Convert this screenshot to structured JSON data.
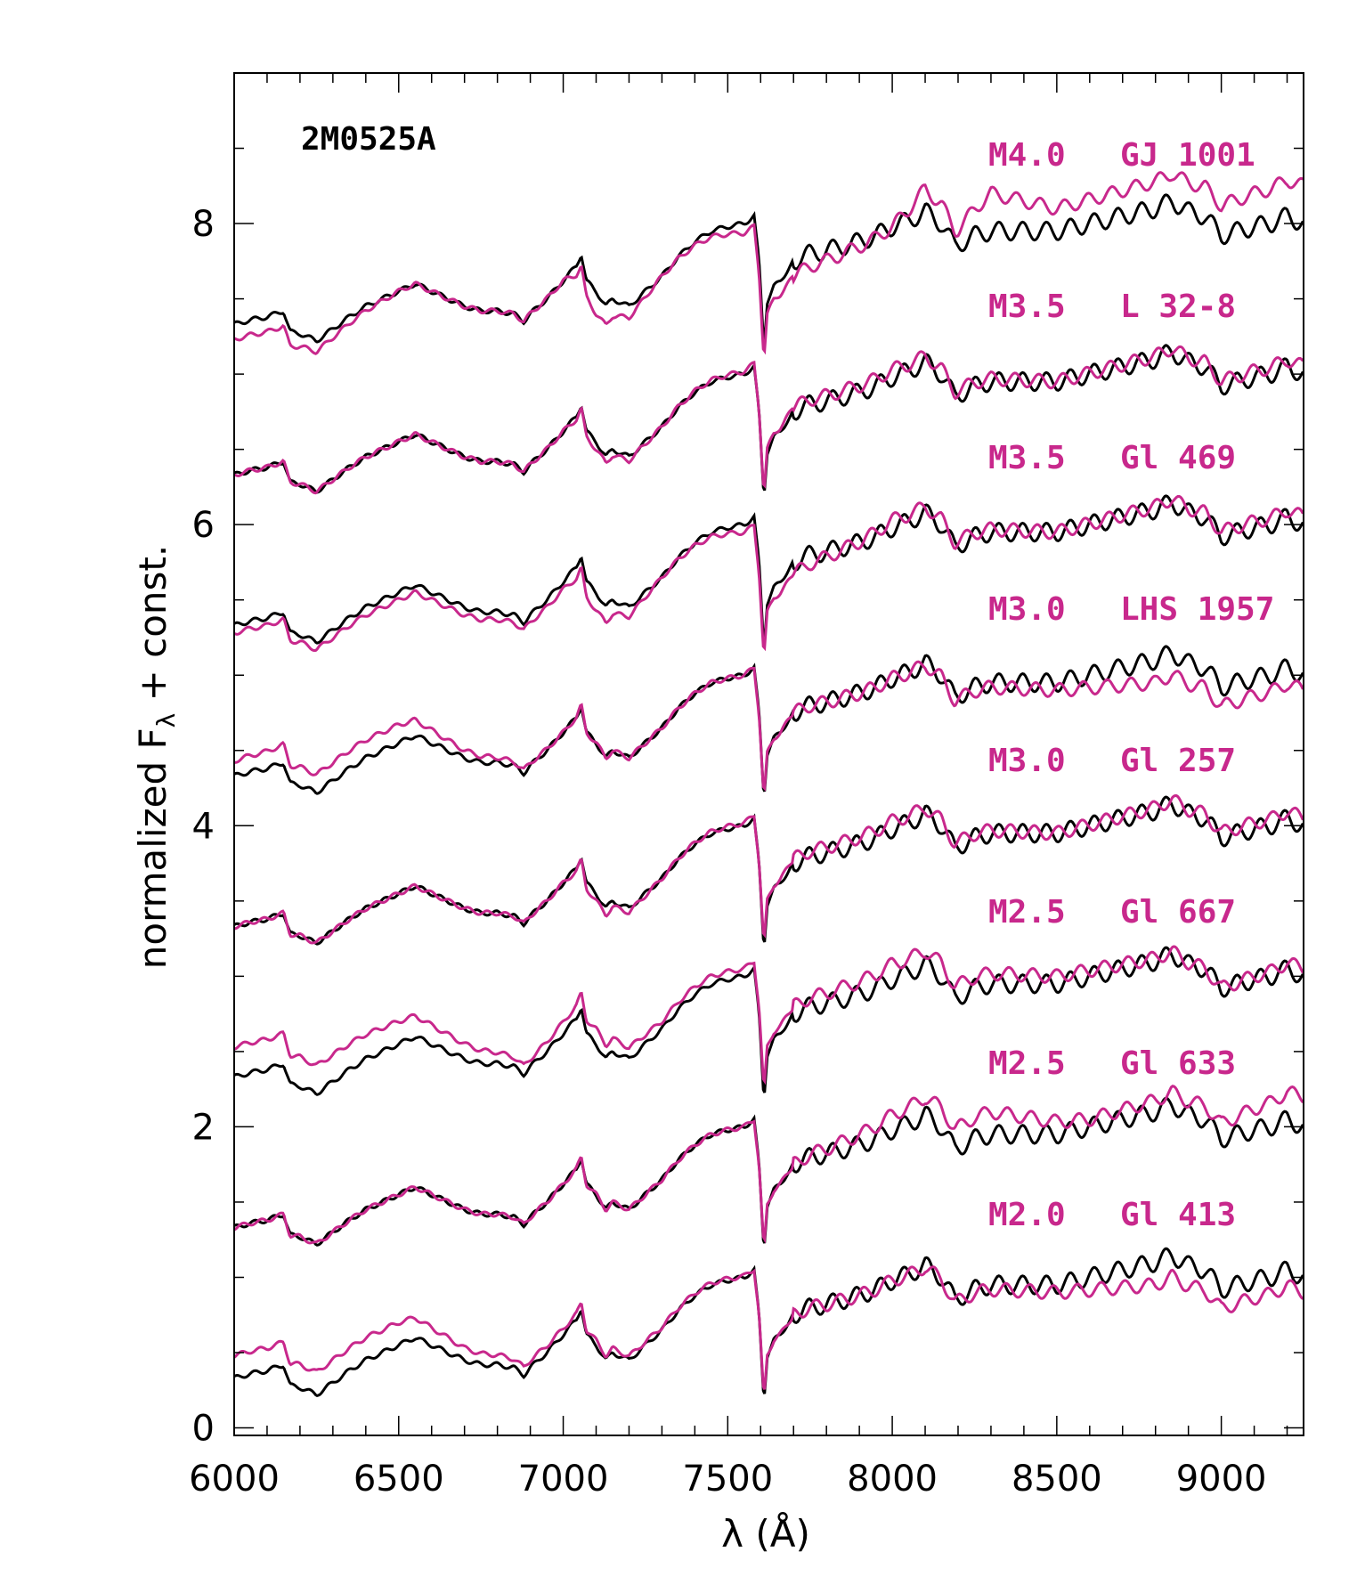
{
  "chart_data": {
    "type": "line",
    "title": "2M0525A",
    "xlabel": "λ (Å)",
    "ylabel": "normalized F",
    "ylabel_sub": "λ",
    "ylabel_suffix": " + const.",
    "xlim": [
      6000,
      9250
    ],
    "ylim": [
      -0.05,
      9.0
    ],
    "xticks": [
      6000,
      6500,
      7000,
      7500,
      8000,
      8500,
      9000
    ],
    "yticks": [
      0,
      2,
      4,
      6,
      8
    ],
    "grid": false,
    "colors": {
      "target": "#000000",
      "template": "#c8288c"
    },
    "offsets": [
      7,
      6,
      5,
      4,
      3,
      2,
      1,
      0
    ],
    "annotations": [
      {
        "spt": "M4.0",
        "name": "GJ 1001"
      },
      {
        "spt": "M3.5",
        "name": "L 32-8"
      },
      {
        "spt": "M3.5",
        "name": "Gl 469"
      },
      {
        "spt": "M3.0",
        "name": "LHS 1957"
      },
      {
        "spt": "M3.0",
        "name": "Gl 257"
      },
      {
        "spt": "M2.5",
        "name": "Gl 667"
      },
      {
        "spt": "M2.5",
        "name": "Gl 633"
      },
      {
        "spt": "M2.0",
        "name": "Gl 413"
      }
    ],
    "base_spectrum": {
      "x": [
        6000,
        6050,
        6100,
        6150,
        6170,
        6200,
        6250,
        6300,
        6350,
        6400,
        6450,
        6500,
        6550,
        6600,
        6650,
        6700,
        6750,
        6800,
        6850,
        6880,
        6900,
        6950,
        7000,
        7040,
        7055,
        7070,
        7100,
        7130,
        7150,
        7200,
        7250,
        7300,
        7350,
        7400,
        7450,
        7500,
        7550,
        7580,
        7595,
        7610,
        7620,
        7640,
        7660,
        7700,
        7750,
        7800,
        7850,
        7900,
        7950,
        8000,
        8050,
        8100,
        8150,
        8190,
        8250,
        8300,
        8400,
        8500,
        8600,
        8700,
        8800,
        8850,
        8900,
        8950,
        9000,
        9050,
        9100,
        9150,
        9200,
        9250
      ],
      "y": [
        0.33,
        0.36,
        0.38,
        0.42,
        0.28,
        0.27,
        0.22,
        0.3,
        0.38,
        0.45,
        0.5,
        0.55,
        0.6,
        0.55,
        0.5,
        0.45,
        0.42,
        0.42,
        0.4,
        0.35,
        0.4,
        0.5,
        0.62,
        0.72,
        0.8,
        0.62,
        0.55,
        0.45,
        0.5,
        0.45,
        0.55,
        0.65,
        0.78,
        0.88,
        0.95,
        0.98,
        1.0,
        1.05,
        0.75,
        0.18,
        0.48,
        0.58,
        0.62,
        0.75,
        0.8,
        0.82,
        0.85,
        0.88,
        0.92,
        0.98,
        1.02,
        1.08,
        1.0,
        0.85,
        0.92,
        0.95,
        0.95,
        0.95,
        1.0,
        1.05,
        1.1,
        1.15,
        1.08,
        1.05,
        0.92,
        0.95,
        0.98,
        1.0,
        1.05,
        1.0
      ]
    },
    "series": [
      {
        "offset": 7,
        "target_delta": [
          [
            6000,
            0.0
          ]
        ],
        "template_delta": [
          [
            6000,
            -0.1
          ],
          [
            6150,
            -0.1
          ],
          [
            6500,
            0.0
          ],
          [
            7000,
            0.0
          ],
          [
            7100,
            -0.15
          ],
          [
            7300,
            0.0
          ],
          [
            7700,
            -0.1
          ],
          [
            8000,
            0.0
          ],
          [
            8100,
            0.15
          ],
          [
            8200,
            0.1
          ],
          [
            8300,
            0.25
          ],
          [
            8500,
            0.15
          ],
          [
            9000,
            0.2
          ],
          [
            9250,
            0.25
          ]
        ]
      },
      {
        "offset": 6,
        "target_delta": [
          [
            6000,
            0.0
          ]
        ],
        "template_delta": [
          [
            6000,
            0.0
          ],
          [
            7000,
            0.0
          ],
          [
            7100,
            -0.05
          ],
          [
            7300,
            0.0
          ],
          [
            8000,
            0.05
          ],
          [
            8500,
            0.0
          ],
          [
            9250,
            0.05
          ]
        ]
      },
      {
        "offset": 5,
        "target_delta": [
          [
            6000,
            0.0
          ]
        ],
        "template_delta": [
          [
            6000,
            -0.05
          ],
          [
            6500,
            -0.05
          ],
          [
            7000,
            -0.05
          ],
          [
            7100,
            -0.12
          ],
          [
            7300,
            0.0
          ],
          [
            7700,
            -0.08
          ],
          [
            8000,
            0.05
          ],
          [
            8500,
            0.0
          ],
          [
            9250,
            0.05
          ]
        ]
      },
      {
        "offset": 4,
        "target_delta": [
          [
            6000,
            0.0
          ]
        ],
        "template_delta": [
          [
            6000,
            0.1
          ],
          [
            6150,
            0.12
          ],
          [
            6500,
            0.12
          ],
          [
            6700,
            0.05
          ],
          [
            7000,
            0.0
          ],
          [
            8000,
            0.0
          ],
          [
            8500,
            -0.05
          ],
          [
            8800,
            -0.15
          ],
          [
            9250,
            -0.1
          ]
        ]
      },
      {
        "offset": 3,
        "target_delta": [
          [
            6000,
            0.0
          ]
        ],
        "template_delta": [
          [
            6000,
            0.0
          ],
          [
            7000,
            0.0
          ],
          [
            7100,
            -0.05
          ],
          [
            7300,
            0.0
          ],
          [
            8000,
            0.05
          ],
          [
            8500,
            0.0
          ],
          [
            9250,
            0.05
          ]
        ]
      },
      {
        "offset": 2,
        "target_delta": [
          [
            6000,
            0.0
          ]
        ],
        "template_delta": [
          [
            6000,
            0.2
          ],
          [
            6150,
            0.2
          ],
          [
            6500,
            0.15
          ],
          [
            6700,
            0.1
          ],
          [
            6900,
            0.05
          ],
          [
            7100,
            0.1
          ],
          [
            7300,
            0.05
          ],
          [
            7700,
            0.05
          ],
          [
            8000,
            0.1
          ],
          [
            8500,
            0.05
          ],
          [
            9000,
            0.0
          ],
          [
            9250,
            0.05
          ]
        ]
      },
      {
        "offset": 1,
        "target_delta": [
          [
            6000,
            0.0
          ]
        ],
        "template_delta": [
          [
            6000,
            0.0
          ],
          [
            7000,
            0.0
          ],
          [
            7700,
            0.0
          ],
          [
            8000,
            0.1
          ],
          [
            8300,
            0.15
          ],
          [
            8600,
            0.05
          ],
          [
            9000,
            0.1
          ],
          [
            9250,
            0.2
          ]
        ]
      },
      {
        "offset": 0,
        "target_delta": [
          [
            6000,
            0.0
          ]
        ],
        "template_delta": [
          [
            6000,
            0.15
          ],
          [
            6150,
            0.15
          ],
          [
            6500,
            0.15
          ],
          [
            6700,
            0.08
          ],
          [
            6900,
            0.05
          ],
          [
            7100,
            0.03
          ],
          [
            7700,
            0.0
          ],
          [
            8000,
            0.0
          ],
          [
            8500,
            -0.05
          ],
          [
            8800,
            -0.15
          ],
          [
            9250,
            -0.1
          ]
        ]
      }
    ]
  }
}
